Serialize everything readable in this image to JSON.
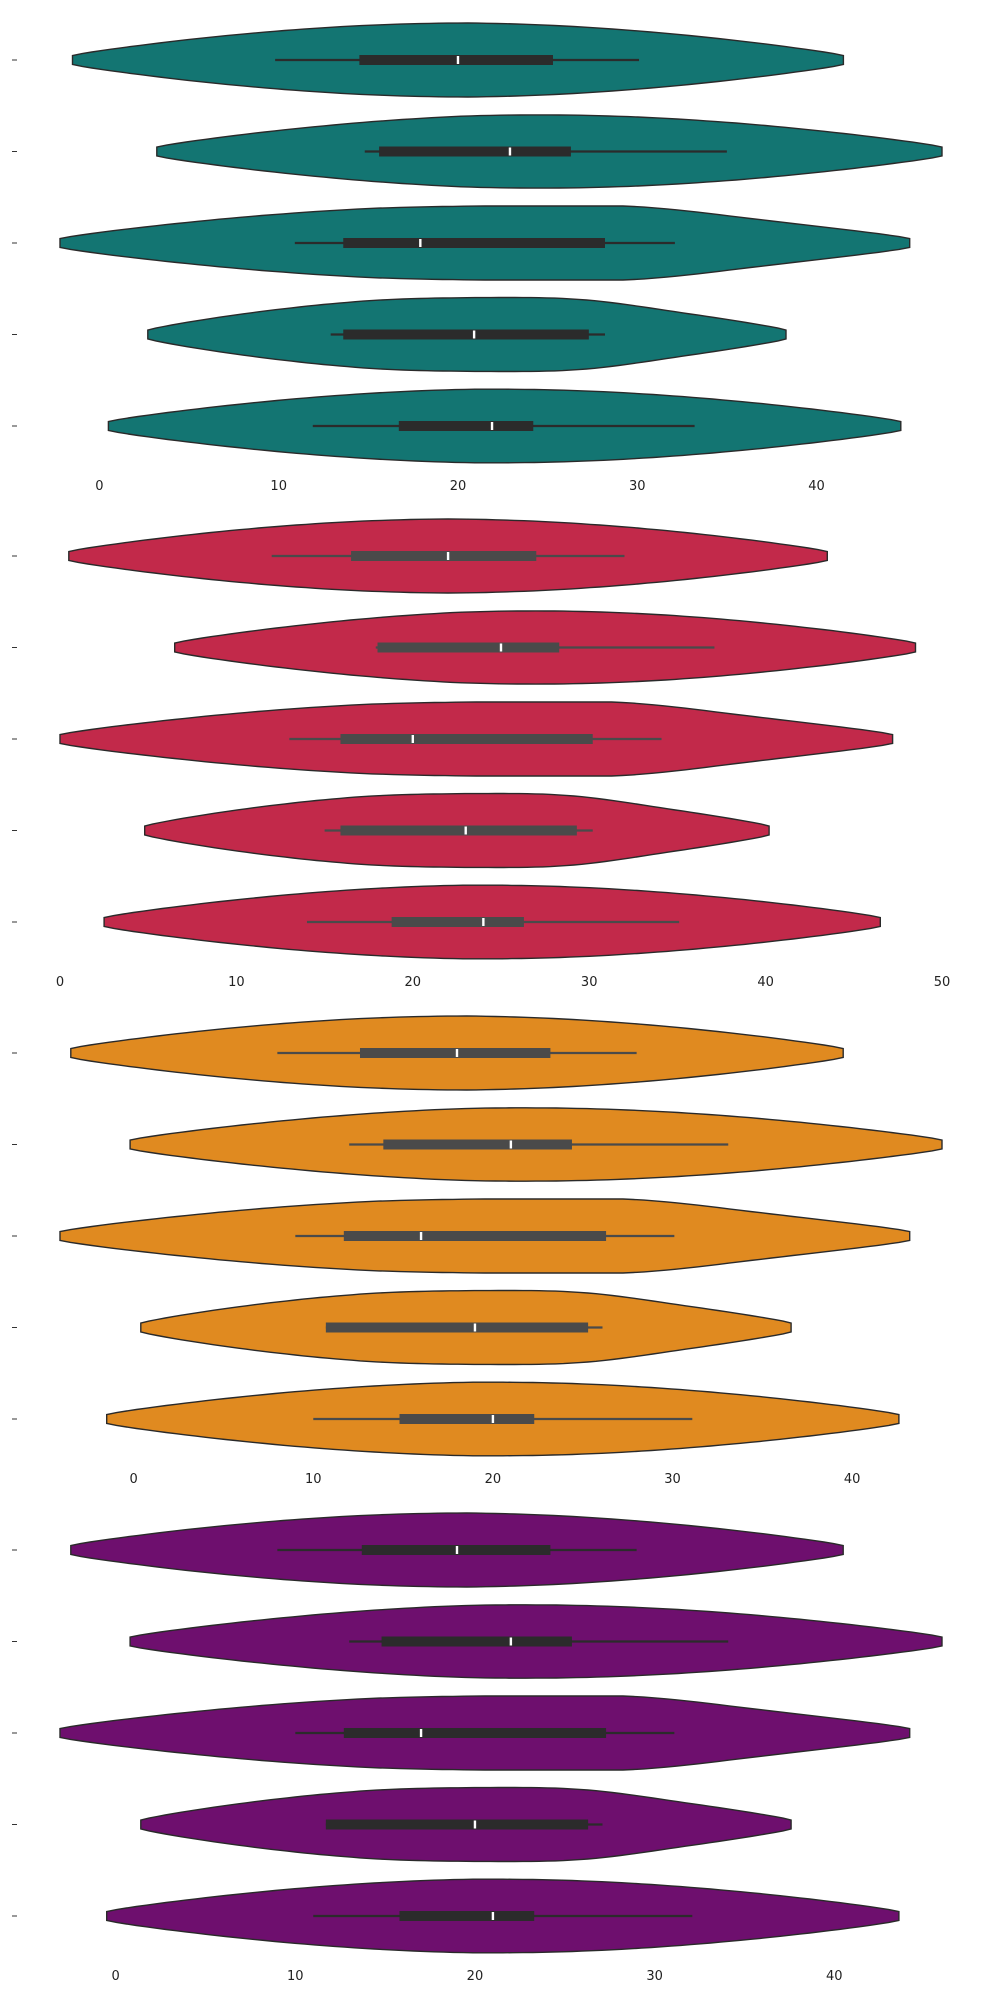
{
  "chart_data": [
    {
      "type": "violin",
      "orientation": "horizontal",
      "fill": "#137572",
      "box_color": "#2b2b2b",
      "median_color": "#ffffff",
      "grid": false,
      "xlim": [
        -2.2,
        47
      ],
      "xticks": [
        0,
        10,
        20,
        30,
        40
      ],
      "categories": [
        "",
        "",
        "",
        "",
        ""
      ],
      "series": [
        {
          "min": -1.5,
          "max": 41.5,
          "q1": 14.5,
          "median": 20,
          "q3": 25.3,
          "whisker_low": 9.8,
          "whisker_high": 30.1,
          "peak": 20.6,
          "bulge_right": 0.0
        },
        {
          "min": 3.2,
          "max": 47.0,
          "q1": 15.6,
          "median": 22.9,
          "q3": 26.3,
          "whisker_low": 14.8,
          "whisker_high": 35.0,
          "peak": 20.5,
          "bulge_right": 0.0
        },
        {
          "min": -2.2,
          "max": 45.2,
          "q1": 13.6,
          "median": 17.9,
          "q3": 28.2,
          "whisker_low": 10.9,
          "whisker_high": 32.1,
          "peak": 15.5,
          "bulge_right": 0.7
        },
        {
          "min": 2.7,
          "max": 38.3,
          "q1": 13.6,
          "median": 20.9,
          "q3": 27.3,
          "whisker_low": 12.9,
          "whisker_high": 28.2,
          "peak": 15.5,
          "bulge_right": 0.5
        },
        {
          "min": 0.5,
          "max": 44.7,
          "q1": 16.7,
          "median": 21.9,
          "q3": 24.2,
          "whisker_low": 11.9,
          "whisker_high": 33.2,
          "peak": 20.5,
          "bulge_right": 0.0
        }
      ]
    },
    {
      "type": "violin",
      "orientation": "horizontal",
      "fill": "#c2294a",
      "box_color": "#4a4a4a",
      "median_color": "#ffffff",
      "grid": false,
      "xlim": [
        0,
        50
      ],
      "xticks": [
        0,
        10,
        20,
        30,
        40,
        50
      ],
      "categories": [
        "",
        "",
        "",
        "",
        ""
      ],
      "series": [
        {
          "min": 0.5,
          "max": 43.5,
          "q1": 16.5,
          "median": 22,
          "q3": 27,
          "whisker_low": 12,
          "whisker_high": 32,
          "peak": 22.0,
          "bulge_right": 0.0
        },
        {
          "min": 6.5,
          "max": 48.5,
          "q1": 18,
          "median": 25,
          "q3": 28.3,
          "whisker_low": 17.9,
          "whisker_high": 37.1,
          "peak": 22.5,
          "bulge_right": 0.0
        },
        {
          "min": 0.0,
          "max": 47.2,
          "q1": 15.9,
          "median": 20,
          "q3": 30.2,
          "whisker_low": 13,
          "whisker_high": 34.1,
          "peak": 17.5,
          "bulge_right": 0.7
        },
        {
          "min": 4.8,
          "max": 40.2,
          "q1": 15.9,
          "median": 23,
          "q3": 29.3,
          "whisker_low": 15,
          "whisker_high": 30.2,
          "peak": 17.5,
          "bulge_right": 0.5
        },
        {
          "min": 2.5,
          "max": 46.5,
          "q1": 18.8,
          "median": 24,
          "q3": 26.3,
          "whisker_low": 14,
          "whisker_high": 35.1,
          "peak": 22.5,
          "bulge_right": 0.0
        }
      ]
    },
    {
      "type": "violin",
      "orientation": "horizontal",
      "fill": "#e08a20",
      "box_color": "#4a4a4a",
      "median_color": "#ffffff",
      "grid": false,
      "xlim": [
        -4.1,
        45
      ],
      "xticks": [
        0,
        10,
        20,
        30,
        40
      ],
      "categories": [
        "",
        "",
        "",
        "",
        ""
      ],
      "series": [
        {
          "min": -3.5,
          "max": 39.5,
          "q1": 12.6,
          "median": 18,
          "q3": 23.2,
          "whisker_low": 8,
          "whisker_high": 28,
          "peak": 18.7,
          "bulge_right": 0.0
        },
        {
          "min": -0.2,
          "max": 45.0,
          "q1": 13.9,
          "median": 21,
          "q3": 24.4,
          "whisker_low": 12,
          "whisker_high": 33.1,
          "peak": 18.3,
          "bulge_right": 0.0
        },
        {
          "min": -4.1,
          "max": 43.2,
          "q1": 11.7,
          "median": 16,
          "q3": 26.3,
          "whisker_low": 9,
          "whisker_high": 30.1,
          "peak": 13.5,
          "bulge_right": 0.7
        },
        {
          "min": 0.4,
          "max": 36.6,
          "q1": 10.7,
          "median": 19,
          "q3": 25.3,
          "whisker_low": 10.7,
          "whisker_high": 26.1,
          "peak": 13.5,
          "bulge_right": 0.5
        },
        {
          "min": -1.5,
          "max": 42.6,
          "q1": 14.8,
          "median": 20,
          "q3": 22.3,
          "whisker_low": 10,
          "whisker_high": 31.1,
          "peak": 18.5,
          "bulge_right": 0.0
        }
      ]
    },
    {
      "type": "violin",
      "orientation": "horizontal",
      "fill": "#6e0f6e",
      "box_color": "#2b2b2b",
      "median_color": "#ffffff",
      "grid": false,
      "xlim": [
        -3.1,
        46
      ],
      "xticks": [
        0,
        10,
        20,
        30,
        40
      ],
      "categories": [
        "",
        "",
        "",
        "",
        ""
      ],
      "series": [
        {
          "min": -2.5,
          "max": 40.5,
          "q1": 13.7,
          "median": 19,
          "q3": 24.2,
          "whisker_low": 9,
          "whisker_high": 29,
          "peak": 19.6,
          "bulge_right": 0.0
        },
        {
          "min": 0.8,
          "max": 46.0,
          "q1": 14.8,
          "median": 22,
          "q3": 25.4,
          "whisker_low": 13,
          "whisker_high": 34.1,
          "peak": 19.3,
          "bulge_right": 0.0
        },
        {
          "min": -3.1,
          "max": 44.2,
          "q1": 12.7,
          "median": 17,
          "q3": 27.3,
          "whisker_low": 10,
          "whisker_high": 31.1,
          "peak": 14.5,
          "bulge_right": 0.7
        },
        {
          "min": 1.4,
          "max": 37.6,
          "q1": 11.7,
          "median": 20,
          "q3": 26.3,
          "whisker_low": 11.7,
          "whisker_high": 27.1,
          "peak": 14.5,
          "bulge_right": 0.5
        },
        {
          "min": -0.5,
          "max": 43.6,
          "q1": 15.8,
          "median": 21,
          "q3": 23.3,
          "whisker_low": 11,
          "whisker_high": 32.1,
          "peak": 19.5,
          "bulge_right": 0.0
        }
      ]
    }
  ]
}
